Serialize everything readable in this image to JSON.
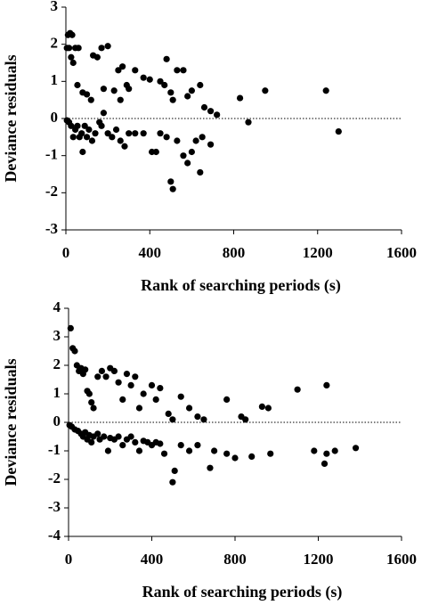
{
  "chart_data": [
    {
      "type": "scatter",
      "xlabel": "Rank of searching periods (s)",
      "ylabel": "Deviance residuals",
      "color": "#000000",
      "hline": 0,
      "xlim": [
        0,
        1600
      ],
      "xticks": [
        0,
        400,
        800,
        1200,
        1600
      ],
      "ylim": [
        -3,
        3
      ],
      "yticks": [
        -3,
        -2,
        -1,
        0,
        1,
        2,
        3
      ],
      "x": [
        10,
        20,
        30,
        5,
        15,
        25,
        35,
        45,
        60,
        55,
        80,
        100,
        120,
        130,
        150,
        170,
        200,
        180,
        230,
        250,
        270,
        290,
        300,
        260,
        330,
        370,
        400,
        450,
        480,
        470,
        500,
        510,
        530,
        560,
        580,
        600,
        640,
        660,
        690,
        720,
        830,
        870,
        950,
        1240,
        1300,
        5,
        15,
        25,
        35,
        45,
        55,
        65,
        75,
        80,
        90,
        100,
        110,
        125,
        140,
        160,
        170,
        180,
        200,
        220,
        240,
        260,
        280,
        300,
        330,
        370,
        410,
        430,
        450,
        480,
        500,
        510,
        530,
        560,
        580,
        600,
        620,
        640,
        650,
        690
      ],
      "values": [
        2.25,
        2.3,
        2.25,
        1.9,
        1.9,
        1.65,
        1.5,
        1.9,
        1.9,
        0.9,
        0.7,
        0.65,
        0.5,
        1.7,
        1.65,
        1.9,
        1.95,
        0.8,
        0.75,
        1.3,
        1.4,
        0.9,
        0.8,
        0.5,
        1.3,
        1.1,
        1.05,
        1.0,
        1.6,
        0.9,
        0.7,
        0.5,
        1.3,
        1.3,
        0.6,
        0.75,
        0.9,
        0.3,
        0.2,
        0.1,
        0.55,
        -0.1,
        0.75,
        0.75,
        -0.35,
        -0.05,
        -0.1,
        -0.2,
        -0.5,
        -0.3,
        -0.2,
        -0.5,
        -0.4,
        -0.9,
        -0.2,
        -0.5,
        -0.3,
        -0.6,
        -0.4,
        -0.1,
        -0.2,
        0.15,
        -0.4,
        -0.5,
        -0.3,
        -0.6,
        -0.75,
        -0.4,
        -0.4,
        -0.4,
        -0.9,
        -0.9,
        -0.4,
        -0.5,
        -1.7,
        -1.9,
        -0.6,
        -1.0,
        -1.2,
        -0.9,
        -0.6,
        -1.45,
        -0.5,
        -0.7
      ]
    },
    {
      "type": "scatter",
      "xlabel": "Rank of searching periods (s)",
      "ylabel": "Deviance residuals",
      "color": "#000000",
      "hline": 0,
      "xlim": [
        0,
        1600
      ],
      "xticks": [
        0,
        400,
        800,
        1200,
        1600
      ],
      "ylim": [
        -4,
        4
      ],
      "yticks": [
        -4,
        -3,
        -2,
        -1,
        0,
        1,
        2,
        3,
        4
      ],
      "x": [
        10,
        20,
        30,
        40,
        50,
        60,
        70,
        80,
        90,
        100,
        110,
        120,
        140,
        160,
        180,
        200,
        220,
        240,
        260,
        280,
        300,
        320,
        340,
        360,
        400,
        420,
        440,
        480,
        500,
        540,
        580,
        620,
        650,
        760,
        830,
        850,
        930,
        960,
        1100,
        1240,
        5,
        15,
        30,
        45,
        60,
        70,
        80,
        90,
        100,
        110,
        120,
        140,
        150,
        170,
        190,
        200,
        220,
        240,
        260,
        280,
        300,
        320,
        340,
        360,
        380,
        400,
        420,
        440,
        460,
        500,
        510,
        540,
        580,
        620,
        680,
        700,
        760,
        800,
        880,
        970,
        1180,
        1230,
        1240,
        1280,
        1380
      ],
      "values": [
        3.3,
        2.6,
        2.5,
        2.0,
        1.8,
        1.9,
        1.7,
        1.85,
        1.1,
        1.0,
        0.7,
        0.5,
        1.6,
        1.8,
        1.6,
        1.9,
        1.8,
        1.4,
        0.8,
        1.7,
        1.3,
        1.6,
        0.5,
        1.0,
        1.3,
        0.8,
        1.2,
        0.3,
        0.1,
        0.9,
        0.5,
        0.2,
        0.1,
        0.8,
        0.2,
        0.1,
        0.55,
        0.5,
        1.15,
        1.3,
        -0.1,
        -0.15,
        -0.25,
        -0.3,
        -0.4,
        -0.5,
        -0.35,
        -0.6,
        -0.45,
        -0.7,
        -0.5,
        -0.4,
        -0.6,
        -0.5,
        -1.0,
        -0.55,
        -0.6,
        -0.5,
        -0.8,
        -0.6,
        -0.5,
        -0.7,
        -1.0,
        -0.65,
        -0.7,
        -0.8,
        -0.7,
        -0.75,
        -1.1,
        -2.1,
        -1.7,
        -0.8,
        -1.0,
        -0.8,
        -1.6,
        -1.0,
        -1.1,
        -1.25,
        -1.2,
        -1.1,
        -1.0,
        -1.45,
        -1.1,
        -1.0,
        -0.9
      ]
    }
  ]
}
